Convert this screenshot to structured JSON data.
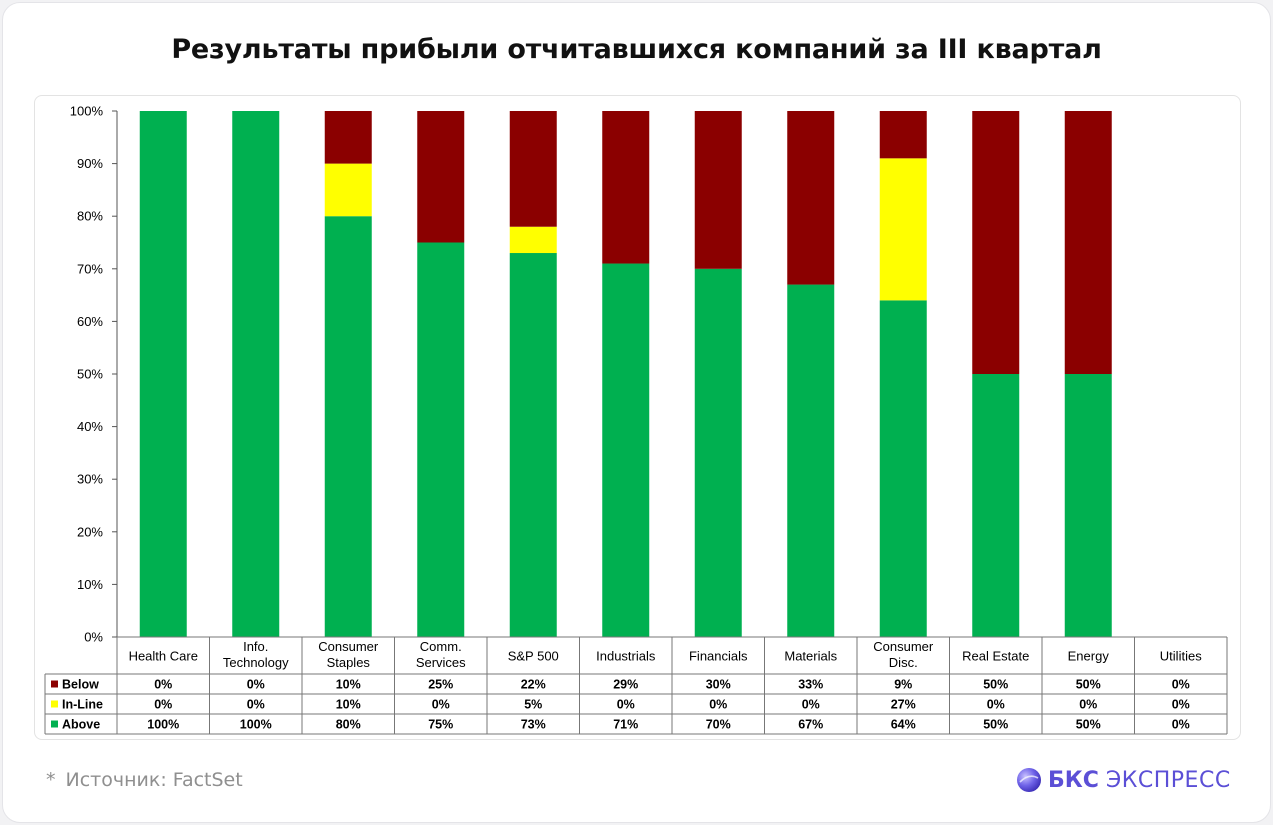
{
  "title": "Результаты прибыли отчитавшихся компаний за III квартал",
  "footnote": {
    "marker": "*",
    "text": "Источник: FactSet"
  },
  "brand": {
    "strong": "БКС",
    "light": "ЭКСПРЕСС",
    "icon": "bks-logo-icon",
    "color": "#5b4fd6"
  },
  "chart_data": {
    "type": "bar",
    "stacked": true,
    "categories": [
      [
        "Health Care"
      ],
      [
        "Info.",
        "Technology"
      ],
      [
        "Consumer",
        "Staples"
      ],
      [
        "Comm.",
        "Services"
      ],
      [
        "S&P 500"
      ],
      [
        "Industrials"
      ],
      [
        "Financials"
      ],
      [
        "Materials"
      ],
      [
        "Consumer",
        "Disc."
      ],
      [
        "Real Estate"
      ],
      [
        "Energy"
      ],
      [
        "Utilities"
      ]
    ],
    "series": [
      {
        "name": "Below",
        "color": "#8b0000",
        "values": [
          0,
          0,
          10,
          25,
          22,
          29,
          30,
          33,
          9,
          50,
          50,
          0
        ],
        "labels": [
          "0%",
          "0%",
          "10%",
          "25%",
          "22%",
          "29%",
          "30%",
          "33%",
          "9%",
          "50%",
          "50%",
          "0%"
        ]
      },
      {
        "name": "In-Line",
        "color": "#ffff00",
        "values": [
          0,
          0,
          10,
          0,
          5,
          0,
          0,
          0,
          27,
          0,
          0,
          0
        ],
        "labels": [
          "0%",
          "0%",
          "10%",
          "0%",
          "5%",
          "0%",
          "0%",
          "0%",
          "27%",
          "0%",
          "0%",
          "0%"
        ]
      },
      {
        "name": "Above",
        "color": "#00b050",
        "values": [
          100,
          100,
          80,
          75,
          73,
          71,
          70,
          67,
          64,
          50,
          50,
          0
        ],
        "labels": [
          "100%",
          "100%",
          "80%",
          "75%",
          "73%",
          "71%",
          "70%",
          "67%",
          "64%",
          "50%",
          "50%",
          "0%"
        ]
      }
    ],
    "stack_order": [
      "Above",
      "In-Line",
      "Below"
    ],
    "yticks": [
      "0%",
      "10%",
      "20%",
      "30%",
      "40%",
      "50%",
      "60%",
      "70%",
      "80%",
      "90%",
      "100%"
    ],
    "ylim": [
      0,
      100
    ],
    "grid": false,
    "legend": "table-left"
  }
}
